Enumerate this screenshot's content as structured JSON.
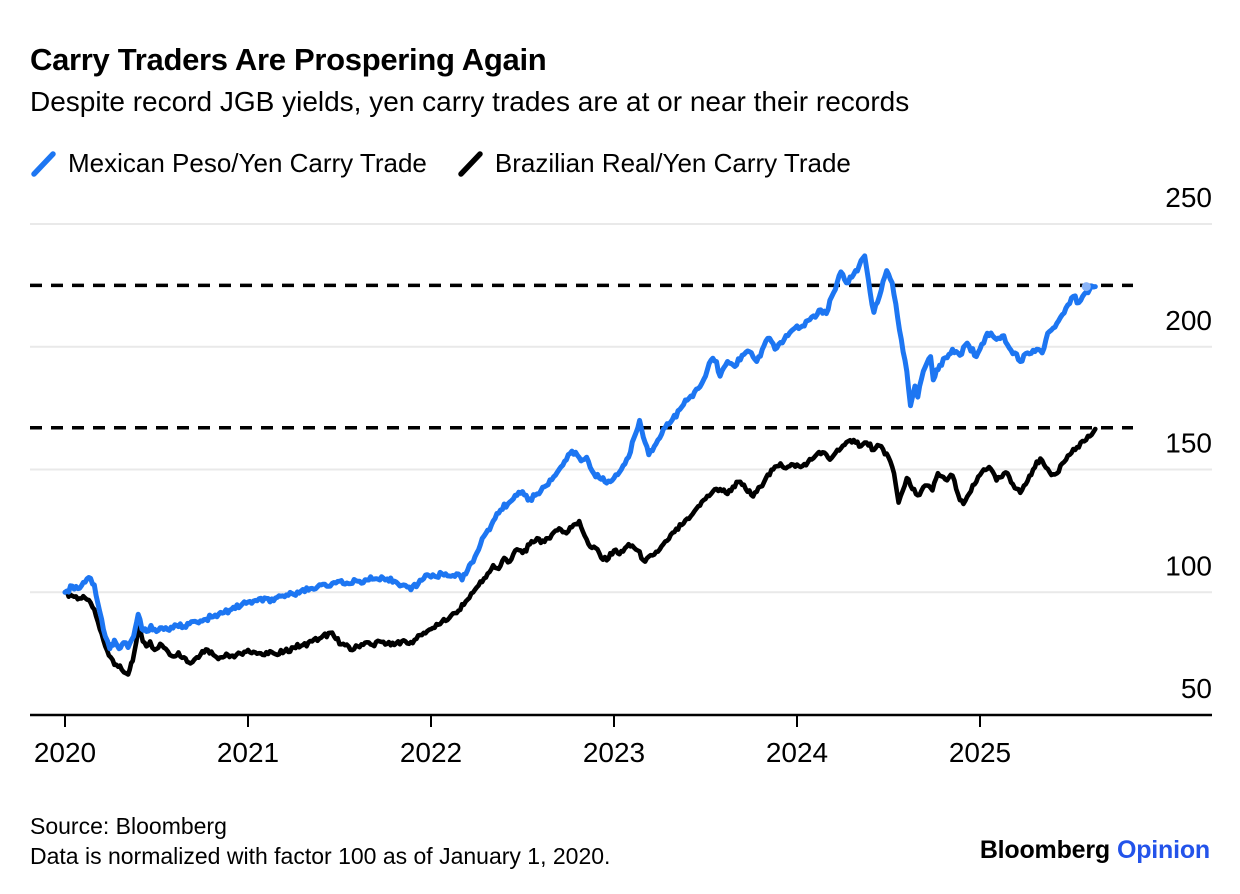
{
  "header": {
    "title": "Carry Traders Are Prospering Again",
    "subtitle": "Despite record JGB yields, yen carry trades are at or near their records"
  },
  "legend": {
    "items": [
      {
        "label": "Mexican Peso/Yen Carry Trade",
        "color": "#1d76f2"
      },
      {
        "label": "Brazilian Real/Yen Carry Trade",
        "color": "#000000"
      }
    ]
  },
  "footer": {
    "source": "Source: Bloomberg",
    "note": "Data is normalized with factor 100 as of January 1, 2020.",
    "logo": {
      "brand": "Bloomberg",
      "section": "Opinion",
      "section_color": "#2353ea"
    }
  },
  "chart_data": {
    "type": "line",
    "title": "Carry Traders Are Prospering Again",
    "xlabel": "",
    "ylabel": "",
    "x_unit": "years since Jan 1, 2020",
    "x_ticks": [
      "2020",
      "2021",
      "2022",
      "2023",
      "2024",
      "2025"
    ],
    "y_ticks": [
      50,
      100,
      150,
      200,
      250
    ],
    "ylim": [
      50,
      255
    ],
    "grid": true,
    "y_axis_side": "right",
    "legend_position": "top-left",
    "dashed_reference_levels": [
      225,
      167
    ],
    "latest_values": {
      "Mexican Peso/Yen Carry Trade": 224.5,
      "Brazilian Real/Yen Carry Trade": 166.5
    },
    "series": [
      {
        "name": "Mexican Peso/Yen Carry Trade",
        "color": "#1d76f2",
        "points": [
          [
            0.0,
            100
          ],
          [
            0.04,
            102.5
          ],
          [
            0.07,
            101.5
          ],
          [
            0.1,
            104
          ],
          [
            0.13,
            106
          ],
          [
            0.16,
            103
          ],
          [
            0.19,
            92
          ],
          [
            0.22,
            82
          ],
          [
            0.245,
            77
          ],
          [
            0.27,
            80.5
          ],
          [
            0.295,
            77
          ],
          [
            0.32,
            79.5
          ],
          [
            0.345,
            77.5
          ],
          [
            0.375,
            82
          ],
          [
            0.4,
            91
          ],
          [
            0.42,
            85
          ],
          [
            0.445,
            84
          ],
          [
            0.47,
            86.5
          ],
          [
            0.5,
            84
          ],
          [
            0.53,
            85.5
          ],
          [
            0.57,
            84.5
          ],
          [
            0.61,
            86.5
          ],
          [
            0.65,
            86
          ],
          [
            0.69,
            88
          ],
          [
            0.73,
            87.5
          ],
          [
            0.77,
            89
          ],
          [
            0.81,
            90
          ],
          [
            0.86,
            91.5
          ],
          [
            0.91,
            93
          ],
          [
            0.96,
            94.5
          ],
          [
            1.0,
            96
          ],
          [
            1.05,
            96.5
          ],
          [
            1.1,
            97.5
          ],
          [
            1.14,
            96.5
          ],
          [
            1.19,
            98.5
          ],
          [
            1.24,
            99.5
          ],
          [
            1.29,
            100.5
          ],
          [
            1.34,
            101.5
          ],
          [
            1.4,
            103
          ],
          [
            1.45,
            102.5
          ],
          [
            1.5,
            104.5
          ],
          [
            1.55,
            103.5
          ],
          [
            1.6,
            104.5
          ],
          [
            1.65,
            105
          ],
          [
            1.7,
            105.5
          ],
          [
            1.75,
            105
          ],
          [
            1.8,
            104.5
          ],
          [
            1.85,
            103
          ],
          [
            1.89,
            101
          ],
          [
            1.93,
            103.5
          ],
          [
            1.97,
            107
          ],
          [
            2.02,
            106.5
          ],
          [
            2.06,
            107.5
          ],
          [
            2.11,
            106.5
          ],
          [
            2.14,
            107.5
          ],
          [
            2.17,
            105
          ],
          [
            2.2,
            109
          ],
          [
            2.25,
            116
          ],
          [
            2.3,
            124
          ],
          [
            2.34,
            129
          ],
          [
            2.38,
            133.5
          ],
          [
            2.42,
            136
          ],
          [
            2.46,
            139.5
          ],
          [
            2.5,
            141
          ],
          [
            2.53,
            137.5
          ],
          [
            2.57,
            139.5
          ],
          [
            2.62,
            143
          ],
          [
            2.67,
            147
          ],
          [
            2.71,
            151
          ],
          [
            2.76,
            156.5
          ],
          [
            2.79,
            157
          ],
          [
            2.82,
            153.5
          ],
          [
            2.85,
            155
          ],
          [
            2.88,
            149.5
          ],
          [
            2.92,
            146.5
          ],
          [
            2.96,
            144.5
          ],
          [
            3.0,
            146.5
          ],
          [
            3.04,
            150
          ],
          [
            3.08,
            155
          ],
          [
            3.11,
            163
          ],
          [
            3.14,
            170
          ],
          [
            3.17,
            161
          ],
          [
            3.19,
            156
          ],
          [
            3.23,
            160.5
          ],
          [
            3.27,
            166.5
          ],
          [
            3.32,
            170.5
          ],
          [
            3.36,
            174.5
          ],
          [
            3.41,
            179
          ],
          [
            3.46,
            183
          ],
          [
            3.5,
            188
          ],
          [
            3.53,
            194.5
          ],
          [
            3.56,
            194
          ],
          [
            3.58,
            188
          ],
          [
            3.62,
            194
          ],
          [
            3.66,
            192
          ],
          [
            3.7,
            196.5
          ],
          [
            3.74,
            198
          ],
          [
            3.78,
            194
          ],
          [
            3.82,
            200.5
          ],
          [
            3.85,
            203.5
          ],
          [
            3.88,
            199
          ],
          [
            3.93,
            203
          ],
          [
            3.97,
            206.5
          ],
          [
            4.02,
            208
          ],
          [
            4.07,
            211
          ],
          [
            4.13,
            215
          ],
          [
            4.16,
            213.5
          ],
          [
            4.2,
            222
          ],
          [
            4.24,
            230.5
          ],
          [
            4.27,
            226
          ],
          [
            4.31,
            229.5
          ],
          [
            4.34,
            233
          ],
          [
            4.37,
            237
          ],
          [
            4.4,
            222
          ],
          [
            4.42,
            214
          ],
          [
            4.46,
            223
          ],
          [
            4.49,
            231
          ],
          [
            4.52,
            226
          ],
          [
            4.55,
            212
          ],
          [
            4.58,
            198
          ],
          [
            4.6,
            190
          ],
          [
            4.62,
            176
          ],
          [
            4.645,
            184
          ],
          [
            4.66,
            179.5
          ],
          [
            4.69,
            190
          ],
          [
            4.73,
            196
          ],
          [
            4.745,
            186.5
          ],
          [
            4.78,
            192.5
          ],
          [
            4.82,
            195.5
          ],
          [
            4.85,
            199
          ],
          [
            4.89,
            196.5
          ],
          [
            4.93,
            201.5
          ],
          [
            4.98,
            196
          ],
          [
            5.04,
            205.5
          ],
          [
            5.09,
            203
          ],
          [
            5.13,
            204.5
          ],
          [
            5.16,
            199.5
          ],
          [
            5.19,
            197.5
          ],
          [
            5.22,
            194
          ],
          [
            5.26,
            197.5
          ],
          [
            5.31,
            199
          ],
          [
            5.34,
            197.5
          ],
          [
            5.37,
            205.5
          ],
          [
            5.41,
            208
          ],
          [
            5.44,
            212
          ],
          [
            5.48,
            217
          ],
          [
            5.51,
            220.5
          ],
          [
            5.54,
            218
          ],
          [
            5.57,
            221.5
          ],
          [
            5.6,
            223.5
          ],
          [
            5.63,
            224.5
          ]
        ]
      },
      {
        "name": "Brazilian Real/Yen Carry Trade",
        "color": "#000000",
        "points": [
          [
            0.0,
            100
          ],
          [
            0.04,
            98.5
          ],
          [
            0.08,
            97.5
          ],
          [
            0.12,
            97
          ],
          [
            0.16,
            93
          ],
          [
            0.19,
            85
          ],
          [
            0.22,
            78
          ],
          [
            0.25,
            73.5
          ],
          [
            0.28,
            70.5
          ],
          [
            0.31,
            68.5
          ],
          [
            0.345,
            66.5
          ],
          [
            0.37,
            72
          ],
          [
            0.39,
            80
          ],
          [
            0.405,
            87
          ],
          [
            0.425,
            80
          ],
          [
            0.445,
            78
          ],
          [
            0.465,
            80
          ],
          [
            0.49,
            76.5
          ],
          [
            0.52,
            79
          ],
          [
            0.55,
            77
          ],
          [
            0.585,
            74
          ],
          [
            0.62,
            75.5
          ],
          [
            0.65,
            73.5
          ],
          [
            0.685,
            71
          ],
          [
            0.72,
            73.5
          ],
          [
            0.75,
            76
          ],
          [
            0.78,
            76.5
          ],
          [
            0.82,
            74
          ],
          [
            0.855,
            73.5
          ],
          [
            0.89,
            74.5
          ],
          [
            0.925,
            73.5
          ],
          [
            0.96,
            75
          ],
          [
            1.0,
            76.5
          ],
          [
            1.04,
            75.5
          ],
          [
            1.08,
            74.5
          ],
          [
            1.12,
            76
          ],
          [
            1.16,
            74.5
          ],
          [
            1.2,
            76
          ],
          [
            1.25,
            77.5
          ],
          [
            1.3,
            78.5
          ],
          [
            1.35,
            80
          ],
          [
            1.4,
            81.5
          ],
          [
            1.45,
            83.5
          ],
          [
            1.48,
            81
          ],
          [
            1.52,
            79
          ],
          [
            1.56,
            76.5
          ],
          [
            1.6,
            78
          ],
          [
            1.64,
            79.5
          ],
          [
            1.68,
            78.5
          ],
          [
            1.72,
            80
          ],
          [
            1.76,
            79
          ],
          [
            1.8,
            78.5
          ],
          [
            1.84,
            80
          ],
          [
            1.88,
            79
          ],
          [
            1.92,
            81
          ],
          [
            1.96,
            83.5
          ],
          [
            2.0,
            85
          ],
          [
            2.05,
            87
          ],
          [
            2.1,
            89.5
          ],
          [
            2.15,
            92.5
          ],
          [
            2.2,
            97
          ],
          [
            2.25,
            102
          ],
          [
            2.3,
            106
          ],
          [
            2.34,
            111
          ],
          [
            2.37,
            109.5
          ],
          [
            2.4,
            114
          ],
          [
            2.43,
            112.5
          ],
          [
            2.47,
            117.5
          ],
          [
            2.5,
            116
          ],
          [
            2.54,
            119.5
          ],
          [
            2.58,
            122
          ],
          [
            2.62,
            120.5
          ],
          [
            2.66,
            123.5
          ],
          [
            2.7,
            126
          ],
          [
            2.74,
            124
          ],
          [
            2.78,
            127.5
          ],
          [
            2.81,
            129
          ],
          [
            2.84,
            123
          ],
          [
            2.87,
            118.5
          ],
          [
            2.9,
            118
          ],
          [
            2.93,
            114
          ],
          [
            2.96,
            113
          ],
          [
            3.0,
            117
          ],
          [
            3.03,
            115.5
          ],
          [
            3.06,
            118
          ],
          [
            3.1,
            119
          ],
          [
            3.13,
            117
          ],
          [
            3.17,
            112.5
          ],
          [
            3.21,
            115
          ],
          [
            3.25,
            117.5
          ],
          [
            3.29,
            121
          ],
          [
            3.33,
            124.5
          ],
          [
            3.38,
            128
          ],
          [
            3.42,
            131
          ],
          [
            3.46,
            135
          ],
          [
            3.5,
            138
          ],
          [
            3.54,
            141
          ],
          [
            3.58,
            142
          ],
          [
            3.62,
            140
          ],
          [
            3.65,
            143
          ],
          [
            3.69,
            145
          ],
          [
            3.72,
            142
          ],
          [
            3.76,
            139
          ],
          [
            3.8,
            143
          ],
          [
            3.83,
            146.5
          ],
          [
            3.87,
            150
          ],
          [
            3.91,
            152.5
          ],
          [
            3.94,
            150.5
          ],
          [
            3.98,
            152
          ],
          [
            4.02,
            151
          ],
          [
            4.06,
            153
          ],
          [
            4.1,
            155.5
          ],
          [
            4.14,
            157
          ],
          [
            4.18,
            154
          ],
          [
            4.22,
            158
          ],
          [
            4.26,
            160
          ],
          [
            4.31,
            162
          ],
          [
            4.35,
            159.5
          ],
          [
            4.38,
            161
          ],
          [
            4.42,
            158
          ],
          [
            4.46,
            159.5
          ],
          [
            4.5,
            155
          ],
          [
            4.53,
            148.5
          ],
          [
            4.555,
            136.5
          ],
          [
            4.6,
            146.5
          ],
          [
            4.63,
            142
          ],
          [
            4.66,
            139.5
          ],
          [
            4.7,
            143.5
          ],
          [
            4.74,
            141.5
          ],
          [
            4.77,
            148.5
          ],
          [
            4.81,
            146
          ],
          [
            4.85,
            147.5
          ],
          [
            4.89,
            137.5
          ],
          [
            4.91,
            136
          ],
          [
            4.94,
            140
          ],
          [
            4.98,
            145
          ],
          [
            5.02,
            150
          ],
          [
            5.05,
            151
          ],
          [
            5.09,
            145.5
          ],
          [
            5.12,
            147
          ],
          [
            5.15,
            148.5
          ],
          [
            5.18,
            144
          ],
          [
            5.22,
            140.5
          ],
          [
            5.25,
            144
          ],
          [
            5.29,
            150
          ],
          [
            5.33,
            154.5
          ],
          [
            5.35,
            152
          ],
          [
            5.38,
            149
          ],
          [
            5.41,
            148
          ],
          [
            5.45,
            152.5
          ],
          [
            5.49,
            156
          ],
          [
            5.52,
            158
          ],
          [
            5.55,
            161
          ],
          [
            5.58,
            162
          ],
          [
            5.6,
            163.5
          ],
          [
            5.63,
            166.5
          ]
        ]
      }
    ]
  }
}
